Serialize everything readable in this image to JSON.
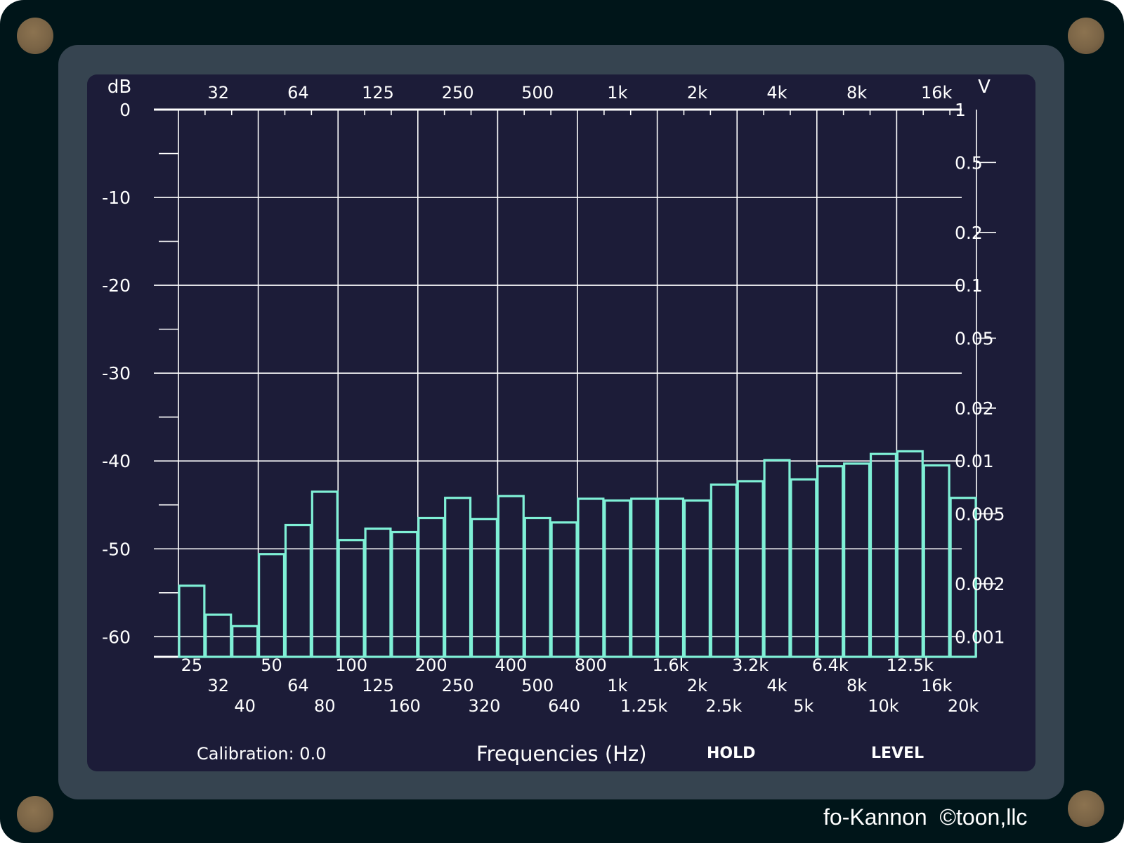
{
  "app": {
    "brand": "fo-Kannon  ©toon,llc"
  },
  "colors": {
    "device": "#001519",
    "bezel": "#364450",
    "screen": "#1c1c38",
    "bars": "#7ff0d6",
    "grid": "#ffffff"
  },
  "footer": {
    "calibration": "Calibration: 0.0",
    "axis_title": "Frequencies (Hz)",
    "hold_label": "HOLD",
    "level_label": "LEVEL"
  },
  "chart_data": {
    "type": "bar",
    "title": "",
    "xlabel": "Frequencies (Hz)",
    "ylabel": "dB",
    "y2label": "V",
    "ylim": [
      -62.3,
      0
    ],
    "grid": true,
    "y_ticks": [
      "0",
      "-10",
      "-20",
      "-30",
      "-40",
      "-50",
      "-60"
    ],
    "y2_ticks": [
      "1",
      "0.5",
      "0.2",
      "0.1",
      "0.05",
      "0.02",
      "0.01",
      "0.005",
      "0.002",
      "0.001"
    ],
    "top_labels": [
      "32",
      "64",
      "125",
      "250",
      "500",
      "1k",
      "2k",
      "4k",
      "8k",
      "16k"
    ],
    "bottom_labels": [
      [
        "25",
        "50",
        "100",
        "200",
        "400",
        "800",
        "1.6k",
        "3.2k",
        "6.4k",
        "12.5k"
      ],
      [
        "32",
        "64",
        "125",
        "250",
        "500",
        "1k",
        "2k",
        "4k",
        "8k",
        "16k"
      ],
      [
        "40",
        "80",
        "160",
        "320",
        "640",
        "1.25k",
        "2.5k",
        "5k",
        "10k",
        "20k"
      ]
    ],
    "categories": [
      "25",
      "32",
      "40",
      "50",
      "64",
      "80",
      "100",
      "125",
      "160",
      "200",
      "250",
      "320",
      "400",
      "500",
      "640",
      "800",
      "1k",
      "1.25k",
      "1.6k",
      "2k",
      "2.5k",
      "3.2k",
      "4k",
      "5k",
      "6.4k",
      "8k",
      "10k",
      "12.5k",
      "16k",
      "20k"
    ],
    "values": [
      -54.2,
      -57.5,
      -58.8,
      -50.6,
      -47.3,
      -43.5,
      -49.0,
      -47.7,
      -48.1,
      -46.5,
      -44.2,
      -46.6,
      -44.0,
      -46.5,
      -47.0,
      -44.3,
      -44.5,
      -44.3,
      -44.3,
      -44.5,
      -42.7,
      -42.3,
      -39.9,
      -42.1,
      -40.6,
      -40.3,
      -39.2,
      -38.9,
      -40.5,
      -44.2
    ]
  }
}
